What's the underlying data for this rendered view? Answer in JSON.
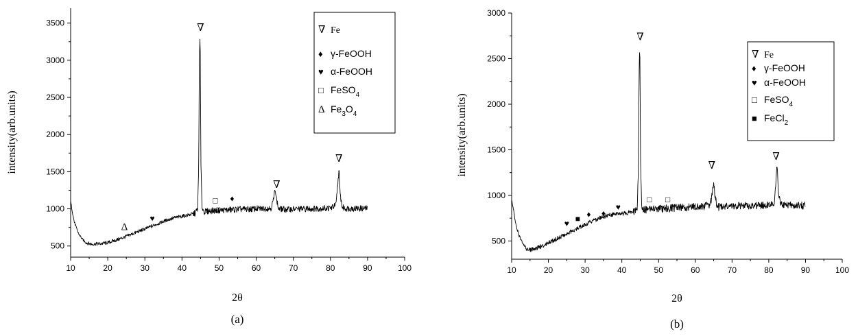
{
  "chart_data": [
    {
      "type": "line",
      "panel_label": "(a)",
      "xlabel": "2θ",
      "ylabel": "intensity(arb.units)",
      "xlim": [
        10,
        100
      ],
      "ylim": [
        350,
        3700
      ],
      "xticks": [
        10,
        20,
        30,
        40,
        50,
        60,
        70,
        80,
        90,
        100
      ],
      "yticks": [
        500,
        1000,
        1500,
        2000,
        2500,
        3000,
        3500
      ],
      "grid": false,
      "legend_position": "top-right",
      "legend": [
        {
          "symbol": "∇",
          "text": "Fe",
          "sub": "",
          "tail": "",
          "serif": true
        },
        {
          "symbol": "♦",
          "text": "γ-FeOOH",
          "sub": "",
          "tail": "",
          "serif": false
        },
        {
          "symbol": "♥",
          "text": "α-FeOOH",
          "sub": "",
          "tail": "",
          "serif": false
        },
        {
          "symbol": "□",
          "text": "FeSO",
          "sub": "4",
          "tail": "",
          "serif": false
        },
        {
          "symbol": "Δ",
          "text": "Fe",
          "sub": "3",
          "tail": "O",
          "sub2": "4",
          "serif": false
        }
      ],
      "series": [
        {
          "x": [
            10,
            10.5,
            11,
            12,
            13,
            14,
            15,
            16,
            18,
            20,
            22,
            24,
            26,
            28,
            30,
            32,
            34,
            36,
            38,
            40,
            42,
            43.5,
            44.2,
            44.5,
            44.7,
            44.9,
            45.1,
            45.4,
            46,
            48,
            50,
            52,
            54,
            56,
            58,
            60,
            62,
            64,
            64.8,
            65.1,
            65.4,
            66,
            68,
            70,
            72,
            74,
            76,
            78,
            80,
            81.5,
            82.0,
            82.3,
            82.6,
            83.2,
            84,
            86,
            88,
            90
          ],
          "y": [
            1100,
            950,
            820,
            680,
            600,
            550,
            530,
            525,
            530,
            545,
            575,
            610,
            650,
            690,
            730,
            770,
            810,
            850,
            880,
            900,
            920,
            940,
            1000,
            1500,
            3100,
            3320,
            1600,
            1020,
            960,
            975,
            980,
            985,
            990,
            995,
            995,
            1000,
            1005,
            1010,
            1150,
            1300,
            1150,
            1000,
            990,
            995,
            1000,
            1000,
            1005,
            1005,
            1010,
            1050,
            1350,
            1540,
            1200,
            1020,
            1005,
            1005,
            1005,
            1005
          ]
        }
      ],
      "annotations": [
        {
          "symbol": "∇",
          "x": 45,
          "y": 3440
        },
        {
          "symbol": "∇",
          "x": 65.5,
          "y": 1330
        },
        {
          "symbol": "∇",
          "x": 82.3,
          "y": 1680
        },
        {
          "symbol": "♥",
          "x": 32,
          "y": 880
        },
        {
          "symbol": "Δ",
          "x": 24.5,
          "y": 760
        },
        {
          "symbol": "□",
          "x": 49,
          "y": 1120
        },
        {
          "symbol": "♦",
          "x": 53.5,
          "y": 1150
        }
      ]
    },
    {
      "type": "line",
      "panel_label": "(b)",
      "xlabel": "2θ",
      "ylabel": "intensity(arb.units)",
      "xlim": [
        10,
        100
      ],
      "ylim": [
        300,
        3000
      ],
      "xticks": [
        10,
        20,
        30,
        40,
        50,
        60,
        70,
        80,
        90,
        100
      ],
      "yticks": [
        500,
        1000,
        1500,
        2000,
        2500,
        3000
      ],
      "grid": false,
      "legend_position": "top-right",
      "legend": [
        {
          "symbol": "∇",
          "text": "Fe",
          "sub": "",
          "tail": "",
          "serif": true
        },
        {
          "symbol": "♦",
          "text": "γ-FeOOH",
          "sub": "",
          "tail": "",
          "serif": false
        },
        {
          "symbol": "♥",
          "text": "α-FeOOH",
          "sub": "",
          "tail": "",
          "serif": false
        },
        {
          "symbol": "□",
          "text": "FeSO",
          "sub": "4",
          "tail": "",
          "serif": false
        },
        {
          "symbol": "■",
          "text": "FeCl",
          "sub": "2",
          "tail": "",
          "serif": false
        }
      ],
      "series": [
        {
          "x": [
            10,
            10.5,
            11,
            12,
            13,
            14,
            15,
            16,
            18,
            20,
            22,
            24,
            26,
            28,
            30,
            32,
            34,
            36,
            38,
            40,
            42,
            43.5,
            44.2,
            44.5,
            44.7,
            44.9,
            45.1,
            45.4,
            46,
            48,
            50,
            52,
            54,
            56,
            58,
            60,
            62,
            64,
            64.6,
            65.0,
            65.4,
            66,
            68,
            70,
            72,
            74,
            76,
            78,
            80,
            81.5,
            82.0,
            82.3,
            82.6,
            83.2,
            84,
            86,
            88,
            90
          ],
          "y": [
            950,
            850,
            700,
            560,
            480,
            420,
            400,
            410,
            440,
            480,
            520,
            560,
            600,
            640,
            680,
            720,
            750,
            780,
            790,
            800,
            810,
            820,
            880,
            1300,
            2400,
            2620,
            1400,
            900,
            840,
            845,
            850,
            855,
            860,
            865,
            870,
            875,
            880,
            890,
            1000,
            1150,
            1000,
            870,
            875,
            880,
            885,
            885,
            885,
            890,
            890,
            920,
            1200,
            1340,
            1050,
            900,
            890,
            890,
            890,
            890
          ]
        }
      ],
      "annotations": [
        {
          "symbol": "∇",
          "x": 45,
          "y": 2740
        },
        {
          "symbol": "∇",
          "x": 64.5,
          "y": 1330
        },
        {
          "symbol": "∇",
          "x": 82,
          "y": 1430
        },
        {
          "symbol": "♥",
          "x": 25,
          "y": 700
        },
        {
          "symbol": "■",
          "x": 28,
          "y": 750
        },
        {
          "symbol": "♦",
          "x": 31,
          "y": 800
        },
        {
          "symbol": "♦",
          "x": 35,
          "y": 810
        },
        {
          "symbol": "♥",
          "x": 39,
          "y": 880
        },
        {
          "symbol": "□",
          "x": 47.5,
          "y": 960
        },
        {
          "symbol": "□",
          "x": 52.5,
          "y": 960
        }
      ]
    }
  ]
}
